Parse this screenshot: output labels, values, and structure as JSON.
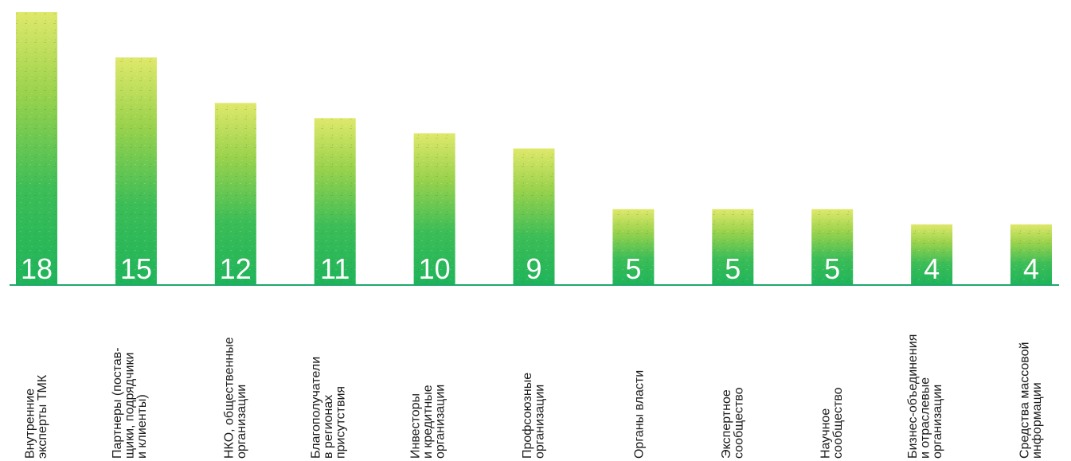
{
  "chart_data": {
    "type": "bar",
    "orientation": "vertical",
    "title": "",
    "xlabel": "",
    "ylabel": "",
    "ylim": [
      0,
      18
    ],
    "grid": false,
    "legend": "none",
    "bar_style": "green-texture",
    "colors": {
      "bar_top": "#dfe86a",
      "bar_mid": "#8ccf45",
      "bar_bottom": "#1fb45a",
      "axis": "#1fa86a",
      "value_text": "#ffffff",
      "label_text": "#1a1a1a"
    },
    "categories": [
      [
        "Внутренние",
        "эксперты ТМК"
      ],
      [
        "Партнеры (постав-",
        "щики, подрядчики",
        "и клиенты)"
      ],
      [
        "НКО, общественные",
        "организации"
      ],
      [
        "Благополучатели",
        "в регионах",
        "присутствия"
      ],
      [
        "Инвесторы",
        "и кредитные",
        "организации"
      ],
      [
        "Профсоюзные",
        "организации"
      ],
      [
        "Органы власти"
      ],
      [
        "Экспертное",
        "сообщество"
      ],
      [
        "Научное",
        "сообщество"
      ],
      [
        "Бизнес-объединения",
        "и отраслевые",
        "организации"
      ],
      [
        "Средства массовой",
        "информации"
      ]
    ],
    "values": [
      18,
      15,
      12,
      11,
      10,
      9,
      5,
      5,
      5,
      4,
      4
    ],
    "value_labels": [
      "18",
      "15",
      "12",
      "11",
      "10",
      "9",
      "5",
      "5",
      "5",
      "4",
      "4"
    ]
  }
}
